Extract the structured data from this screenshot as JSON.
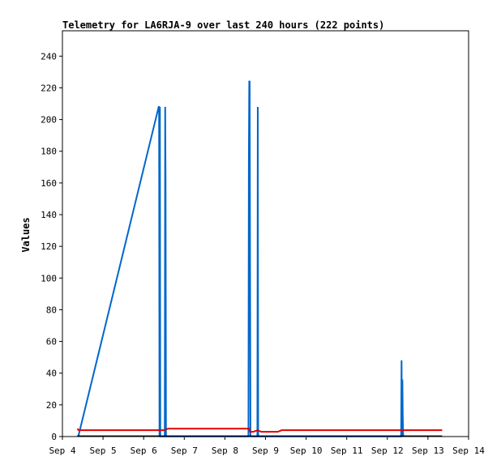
{
  "chart_data": {
    "type": "line",
    "title": "Telemetry for LA6RJA-9 over last 240 hours (222 points)",
    "xlabel": "",
    "ylabel": "Values",
    "x_axis_type": "date",
    "xlim": [
      "Sep 4",
      "Sep 14"
    ],
    "ylim": [
      0,
      256
    ],
    "x_ticks": [
      "Sep 4",
      "Sep 5",
      "Sep 6",
      "Sep 7",
      "Sep 8",
      "Sep 9",
      "Sep 10",
      "Sep 11",
      "Sep 12",
      "Sep 13",
      "Sep 14"
    ],
    "y_ticks": [
      0,
      20,
      40,
      60,
      80,
      100,
      120,
      140,
      160,
      180,
      200,
      220,
      240
    ],
    "grid": false,
    "legend": "none",
    "series": [
      {
        "color": "#0066cc",
        "x": [
          4.37,
          4.4,
          6.37,
          6.38,
          6.39,
          6.4,
          6.41,
          6.52,
          6.53,
          6.54,
          6.55,
          6.56,
          8.58,
          8.59,
          8.6,
          8.61,
          8.62,
          8.63,
          8.64,
          8.65,
          8.8,
          8.81,
          8.82,
          12.34,
          12.35,
          12.36,
          12.37,
          12.38,
          12.39
        ],
        "y": [
          0,
          1,
          208,
          208,
          0,
          208,
          0,
          0,
          208,
          160,
          0,
          0,
          0,
          177,
          224,
          224,
          112,
          0,
          0,
          0,
          0,
          208,
          0,
          0,
          48,
          0,
          36,
          12,
          0
        ]
      },
      {
        "color": "#e00000",
        "x": [
          4.37,
          4.4,
          6.5,
          6.6,
          8.6,
          8.62,
          8.7,
          8.8,
          8.9,
          9.1,
          9.3,
          9.4,
          9.5,
          12.3,
          13.35
        ],
        "y": [
          5,
          4,
          4,
          5,
          5,
          3,
          3,
          4,
          3,
          3,
          3,
          4,
          4,
          4,
          4
        ]
      },
      {
        "color": "#000000",
        "x": [
          4.37,
          13.35
        ],
        "y": [
          0.3,
          0.3
        ]
      }
    ]
  }
}
